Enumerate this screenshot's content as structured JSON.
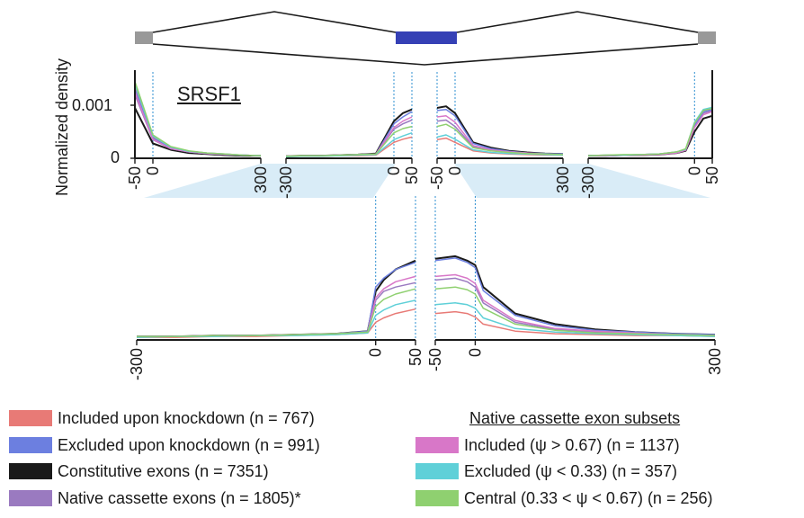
{
  "figure": {
    "gene": "SRSF1",
    "ylabel": "Normalized density",
    "ytick_labels": [
      "0.001",
      "0"
    ]
  },
  "colors": {
    "included_kd": "#e87a76",
    "excluded_kd": "#6c7fe0",
    "constitutive": "#1a1a1a",
    "native": "#9a7ac0",
    "included_psi": "#d877c8",
    "excluded_psi": "#5fd0d8",
    "central_psi": "#8fd070",
    "exon_middle": "#3540b5",
    "exon_flank": "#999999",
    "zoom_shade": "#d9ecf7",
    "boundary_line": "#2e8fd0"
  },
  "legend": {
    "left": [
      {
        "key": "included_kd",
        "label": "Included upon knockdown (n = 767)"
      },
      {
        "key": "excluded_kd",
        "label": "Excluded upon knockdown (n = 991)"
      },
      {
        "key": "constitutive",
        "label": "Constitutive exons (n = 7351)"
      },
      {
        "key": "native",
        "label": "Native cassette exons (n = 1805)*"
      }
    ],
    "right_title": "Native cassette exon subsets",
    "right": [
      {
        "key": "included_psi",
        "label": "Included (ψ > 0.67) (n = 1137)"
      },
      {
        "key": "excluded_psi",
        "label": "Excluded (ψ < 0.33) (n = 357)"
      },
      {
        "key": "central_psi",
        "label": "Central (0.33 < ψ < 0.67) (n = 256)"
      }
    ]
  },
  "chart_data": [
    {
      "type": "line",
      "name": "top",
      "ylabel": "Normalized density",
      "yticks": [
        0,
        0.001
      ],
      "ytick_labels": [
        "0",
        "0.001"
      ],
      "ylim": [
        0,
        0.0015
      ],
      "panels": [
        {
          "tick_labels": [
            "-50",
            "0",
            "300"
          ],
          "x": [
            -50,
            0,
            50,
            100,
            150,
            200,
            250,
            300
          ],
          "series": [
            {
              "key": "constitutive",
              "values": [
                0.00095,
                0.00028,
                0.00016,
                0.0001,
                8e-05,
                6e-05,
                5e-05,
                5e-05
              ]
            },
            {
              "key": "native",
              "values": [
                0.0012,
                0.00035,
                0.00018,
                0.00012,
                9e-05,
                7e-05,
                6e-05,
                5e-05
              ]
            },
            {
              "key": "included_kd",
              "values": [
                0.00135,
                0.0004,
                0.0002,
                0.00013,
                0.0001,
                8e-05,
                6e-05,
                5e-05
              ]
            },
            {
              "key": "excluded_kd",
              "values": [
                0.0013,
                0.00038,
                0.00019,
                0.00012,
                9e-05,
                7e-05,
                6e-05,
                5e-05
              ]
            },
            {
              "key": "included_psi",
              "values": [
                0.00125,
                0.00036,
                0.00018,
                0.00012,
                9e-05,
                7e-05,
                6e-05,
                5e-05
              ]
            },
            {
              "key": "excluded_psi",
              "values": [
                0.0014,
                0.00042,
                0.00021,
                0.00013,
                0.0001,
                8e-05,
                6e-05,
                5e-05
              ]
            },
            {
              "key": "central_psi",
              "values": [
                0.00145,
                0.00044,
                0.00022,
                0.00014,
                0.0001,
                8e-05,
                6e-05,
                5e-05
              ]
            }
          ]
        },
        {
          "tick_labels": [
            "-300",
            "0",
            "50"
          ],
          "x": [
            -300,
            -250,
            -200,
            -150,
            -100,
            -50,
            0,
            25,
            50
          ],
          "series": [
            {
              "key": "constitutive",
              "values": [
                4e-05,
                5e-05,
                5e-05,
                6e-05,
                7e-05,
                9e-05,
                0.0007,
                0.00085,
                0.00092
              ]
            },
            {
              "key": "native",
              "values": [
                4e-05,
                5e-05,
                5e-05,
                6e-05,
                7e-05,
                8e-05,
                0.00055,
                0.00065,
                0.00072
              ]
            },
            {
              "key": "included_kd",
              "values": [
                3e-05,
                4e-05,
                4e-05,
                5e-05,
                5e-05,
                6e-05,
                0.0003,
                0.00036,
                0.0004
              ]
            },
            {
              "key": "excluded_kd",
              "values": [
                4e-05,
                5e-05,
                5e-05,
                6e-05,
                7e-05,
                8e-05,
                0.00065,
                0.00078,
                0.00088
              ]
            },
            {
              "key": "included_psi",
              "values": [
                4e-05,
                5e-05,
                5e-05,
                6e-05,
                7e-05,
                8e-05,
                0.00058,
                0.0007,
                0.00078
              ]
            },
            {
              "key": "excluded_psi",
              "values": [
                3e-05,
                4e-05,
                4e-05,
                5e-05,
                6e-05,
                7e-05,
                0.00035,
                0.00042,
                0.00048
              ]
            },
            {
              "key": "central_psi",
              "values": [
                4e-05,
                5e-05,
                5e-05,
                6e-05,
                7e-05,
                8e-05,
                0.00048,
                0.00056,
                0.0006
              ]
            }
          ]
        },
        {
          "tick_labels": [
            "-50",
            "0",
            "300"
          ],
          "x": [
            -50,
            -25,
            0,
            50,
            100,
            150,
            200,
            250,
            300
          ],
          "series": [
            {
              "key": "constitutive",
              "values": [
                0.00095,
                0.00098,
                0.00085,
                0.0003,
                0.0002,
                0.00014,
                0.00011,
                9e-05,
                8e-05
              ]
            },
            {
              "key": "native",
              "values": [
                0.0007,
                0.00072,
                0.0006,
                0.00022,
                0.00015,
                0.00011,
                9e-05,
                8e-05,
                7e-05
              ]
            },
            {
              "key": "included_kd",
              "values": [
                0.00035,
                0.00038,
                0.0003,
                0.00014,
                0.0001,
                8e-05,
                7e-05,
                6e-05,
                6e-05
              ]
            },
            {
              "key": "excluded_kd",
              "values": [
                0.0009,
                0.00092,
                0.0008,
                0.00028,
                0.00018,
                0.00013,
                0.0001,
                9e-05,
                8e-05
              ]
            },
            {
              "key": "included_psi",
              "values": [
                0.00078,
                0.0008,
                0.00068,
                0.00024,
                0.00016,
                0.00012,
                0.0001,
                8e-05,
                7e-05
              ]
            },
            {
              "key": "excluded_psi",
              "values": [
                0.0004,
                0.00044,
                0.00036,
                0.00016,
                0.00011,
                9e-05,
                8e-05,
                7e-05,
                6e-05
              ]
            },
            {
              "key": "central_psi",
              "values": [
                0.0006,
                0.00064,
                0.00055,
                0.0002,
                0.00014,
                0.00011,
                9e-05,
                8e-05,
                7e-05
              ]
            }
          ]
        },
        {
          "tick_labels": [
            "-300",
            "0",
            "50"
          ],
          "x": [
            -300,
            -250,
            -200,
            -150,
            -100,
            -50,
            -25,
            0,
            25,
            50
          ],
          "series": [
            {
              "key": "constitutive",
              "values": [
                5e-05,
                5e-05,
                6e-05,
                6e-05,
                7e-05,
                0.0001,
                0.00014,
                0.0005,
                0.00075,
                0.0008
              ]
            },
            {
              "key": "native",
              "values": [
                5e-05,
                5e-05,
                6e-05,
                7e-05,
                8e-05,
                0.00011,
                0.00016,
                0.0006,
                0.00085,
                0.0009
              ]
            },
            {
              "key": "included_kd",
              "values": [
                5e-05,
                6e-05,
                6e-05,
                7e-05,
                8e-05,
                0.00012,
                0.00017,
                0.00065,
                0.0009,
                0.00095
              ]
            },
            {
              "key": "excluded_kd",
              "values": [
                5e-05,
                5e-05,
                6e-05,
                7e-05,
                8e-05,
                0.00011,
                0.00016,
                0.00062,
                0.00088,
                0.00092
              ]
            },
            {
              "key": "included_psi",
              "values": [
                5e-05,
                5e-05,
                6e-05,
                6e-05,
                7e-05,
                0.0001,
                0.00015,
                0.00058,
                0.00082,
                0.00088
              ]
            },
            {
              "key": "excluded_psi",
              "values": [
                5e-05,
                6e-05,
                6e-05,
                7e-05,
                8e-05,
                0.00012,
                0.00017,
                0.00068,
                0.00092,
                0.00096
              ]
            },
            {
              "key": "central_psi",
              "values": [
                5e-05,
                6e-05,
                7e-05,
                7e-05,
                8e-05,
                0.00012,
                0.00018,
                0.00066,
                0.0009,
                0.00094
              ]
            }
          ]
        }
      ]
    },
    {
      "type": "line",
      "name": "bottom",
      "ylim": [
        0,
        0.001
      ],
      "panels": [
        {
          "tick_labels": [
            "-300",
            "0",
            "50"
          ],
          "x": [
            -300,
            -250,
            -200,
            -150,
            -100,
            -50,
            -10,
            0,
            10,
            25,
            50
          ],
          "series": [
            {
              "key": "constitutive",
              "values": [
                4e-05,
                4e-05,
                5e-05,
                5e-05,
                6e-05,
                7e-05,
                0.0001,
                0.00055,
                0.00068,
                0.0008,
                0.0009
              ]
            },
            {
              "key": "native",
              "values": [
                4e-05,
                4e-05,
                5e-05,
                5e-05,
                6e-05,
                7e-05,
                9e-05,
                0.00045,
                0.00055,
                0.0006,
                0.00065
              ]
            },
            {
              "key": "included_kd",
              "values": [
                3e-05,
                3e-05,
                4e-05,
                4e-05,
                5e-05,
                6e-05,
                8e-05,
                0.0002,
                0.00025,
                0.0003,
                0.00035
              ]
            },
            {
              "key": "excluded_kd",
              "values": [
                4e-05,
                4e-05,
                5e-05,
                5e-05,
                6e-05,
                7e-05,
                0.0001,
                0.0006,
                0.0007,
                0.0008,
                0.00088
              ]
            },
            {
              "key": "included_psi",
              "values": [
                4e-05,
                4e-05,
                5e-05,
                5e-05,
                6e-05,
                7e-05,
                9e-05,
                0.00048,
                0.00058,
                0.00066,
                0.00072
              ]
            },
            {
              "key": "excluded_psi",
              "values": [
                3e-05,
                4e-05,
                4e-05,
                5e-05,
                5e-05,
                6e-05,
                8e-05,
                0.00028,
                0.00034,
                0.0004,
                0.00045
              ]
            },
            {
              "key": "central_psi",
              "values": [
                4e-05,
                4e-05,
                5e-05,
                5e-05,
                6e-05,
                7e-05,
                9e-05,
                0.00038,
                0.00046,
                0.00052,
                0.00058
              ]
            }
          ]
        },
        {
          "tick_labels": [
            "-50",
            "0",
            "300"
          ],
          "x": [
            -50,
            -25,
            -10,
            0,
            10,
            50,
            100,
            150,
            200,
            250,
            300
          ],
          "series": [
            {
              "key": "constitutive",
              "values": [
                0.00092,
                0.00095,
                0.0009,
                0.00085,
                0.0006,
                0.0003,
                0.00018,
                0.00012,
                9e-05,
                7e-05,
                6e-05
              ]
            },
            {
              "key": "native",
              "values": [
                0.00068,
                0.0007,
                0.00066,
                0.0006,
                0.00042,
                0.0002,
                0.00012,
                9e-05,
                7e-05,
                6e-05,
                5e-05
              ]
            },
            {
              "key": "included_kd",
              "values": [
                0.0003,
                0.00032,
                0.0003,
                0.00026,
                0.00018,
                0.0001,
                7e-05,
                6e-05,
                5e-05,
                5e-05,
                4e-05
              ]
            },
            {
              "key": "excluded_kd",
              "values": [
                0.0009,
                0.00093,
                0.00088,
                0.00082,
                0.00056,
                0.00028,
                0.00016,
                0.00011,
                9e-05,
                7e-05,
                6e-05
              ]
            },
            {
              "key": "included_psi",
              "values": [
                0.00072,
                0.00074,
                0.0007,
                0.00064,
                0.00045,
                0.00022,
                0.00013,
                0.0001,
                8e-05,
                6e-05,
                5e-05
              ]
            },
            {
              "key": "excluded_psi",
              "values": [
                0.0004,
                0.00042,
                0.0004,
                0.00036,
                0.00025,
                0.00013,
                9e-05,
                7e-05,
                6e-05,
                5e-05,
                4e-05
              ]
            },
            {
              "key": "central_psi",
              "values": [
                0.00058,
                0.0006,
                0.00057,
                0.00052,
                0.00036,
                0.00018,
                0.00011,
                8e-05,
                7e-05,
                6e-05,
                5e-05
              ]
            }
          ]
        }
      ]
    }
  ]
}
